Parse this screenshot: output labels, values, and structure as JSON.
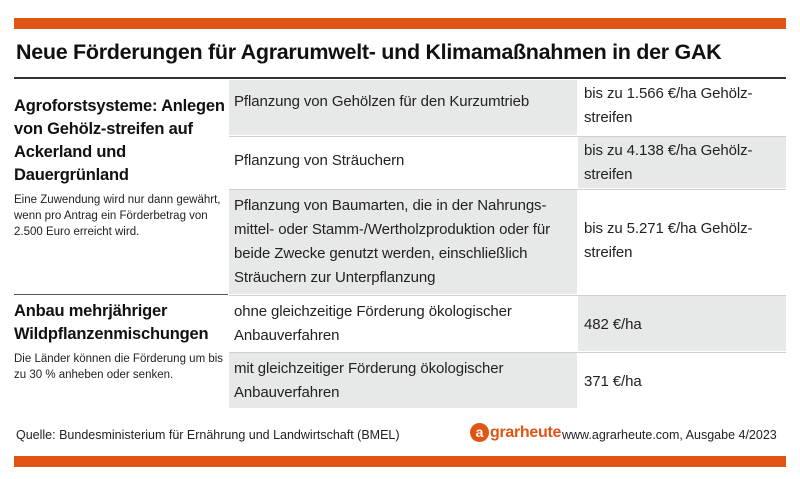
{
  "title": "Neue Förderungen für Agrarumwelt- und Klimamaßnahmen in der GAK",
  "sections": [
    {
      "heading": "Agroforstsysteme: Anlegen von Gehölz-streifen auf Ackerland und Dauergrünland",
      "note": "Eine Zuwendung wird nur dann gewährt, wenn pro Antrag ein Förderbetrag von 2.500 Euro erreicht wird.",
      "rows": [
        {
          "measure": "Pflanzung von Gehölzen für den Kurzumtrieb",
          "amount": "bis zu 1.566 €/ha Gehölz-streifen"
        },
        {
          "measure": "Pflanzung von Sträuchern",
          "amount": "bis zu 4.138 €/ha Gehölz-streifen"
        },
        {
          "measure": "Pflanzung von Baumarten, die in der Nahrungs-mittel- oder Stamm-/Wertholzproduktion oder für beide Zwecke genutzt werden, einschließlich Sträuchern zur Unterpflanzung",
          "amount": "bis zu 5.271 €/ha Gehölz-streifen"
        }
      ]
    },
    {
      "heading": "Anbau mehrjähriger Wildpflanzenmischungen",
      "note": "Die Länder können die Förderung um bis zu 30 % anheben oder senken.",
      "rows": [
        {
          "measure": "ohne gleichzeitige Förderung ökologischer Anbauverfahren",
          "amount": "482 €/ha"
        },
        {
          "measure": "mit gleichzeitiger Förderung ökologischer Anbauverfahren",
          "amount": "371 €/ha"
        }
      ]
    }
  ],
  "footer": {
    "source": "Quelle: Bundesministerium für Ernährung und Landwirtschaft (BMEL)",
    "brand_mark": "a",
    "brand_name": "grarheute",
    "credit": "www.agrarheute.com, Ausgabe 4/2023"
  },
  "colors": {
    "accent": "#e05414",
    "shade": "#e7e8e8"
  }
}
